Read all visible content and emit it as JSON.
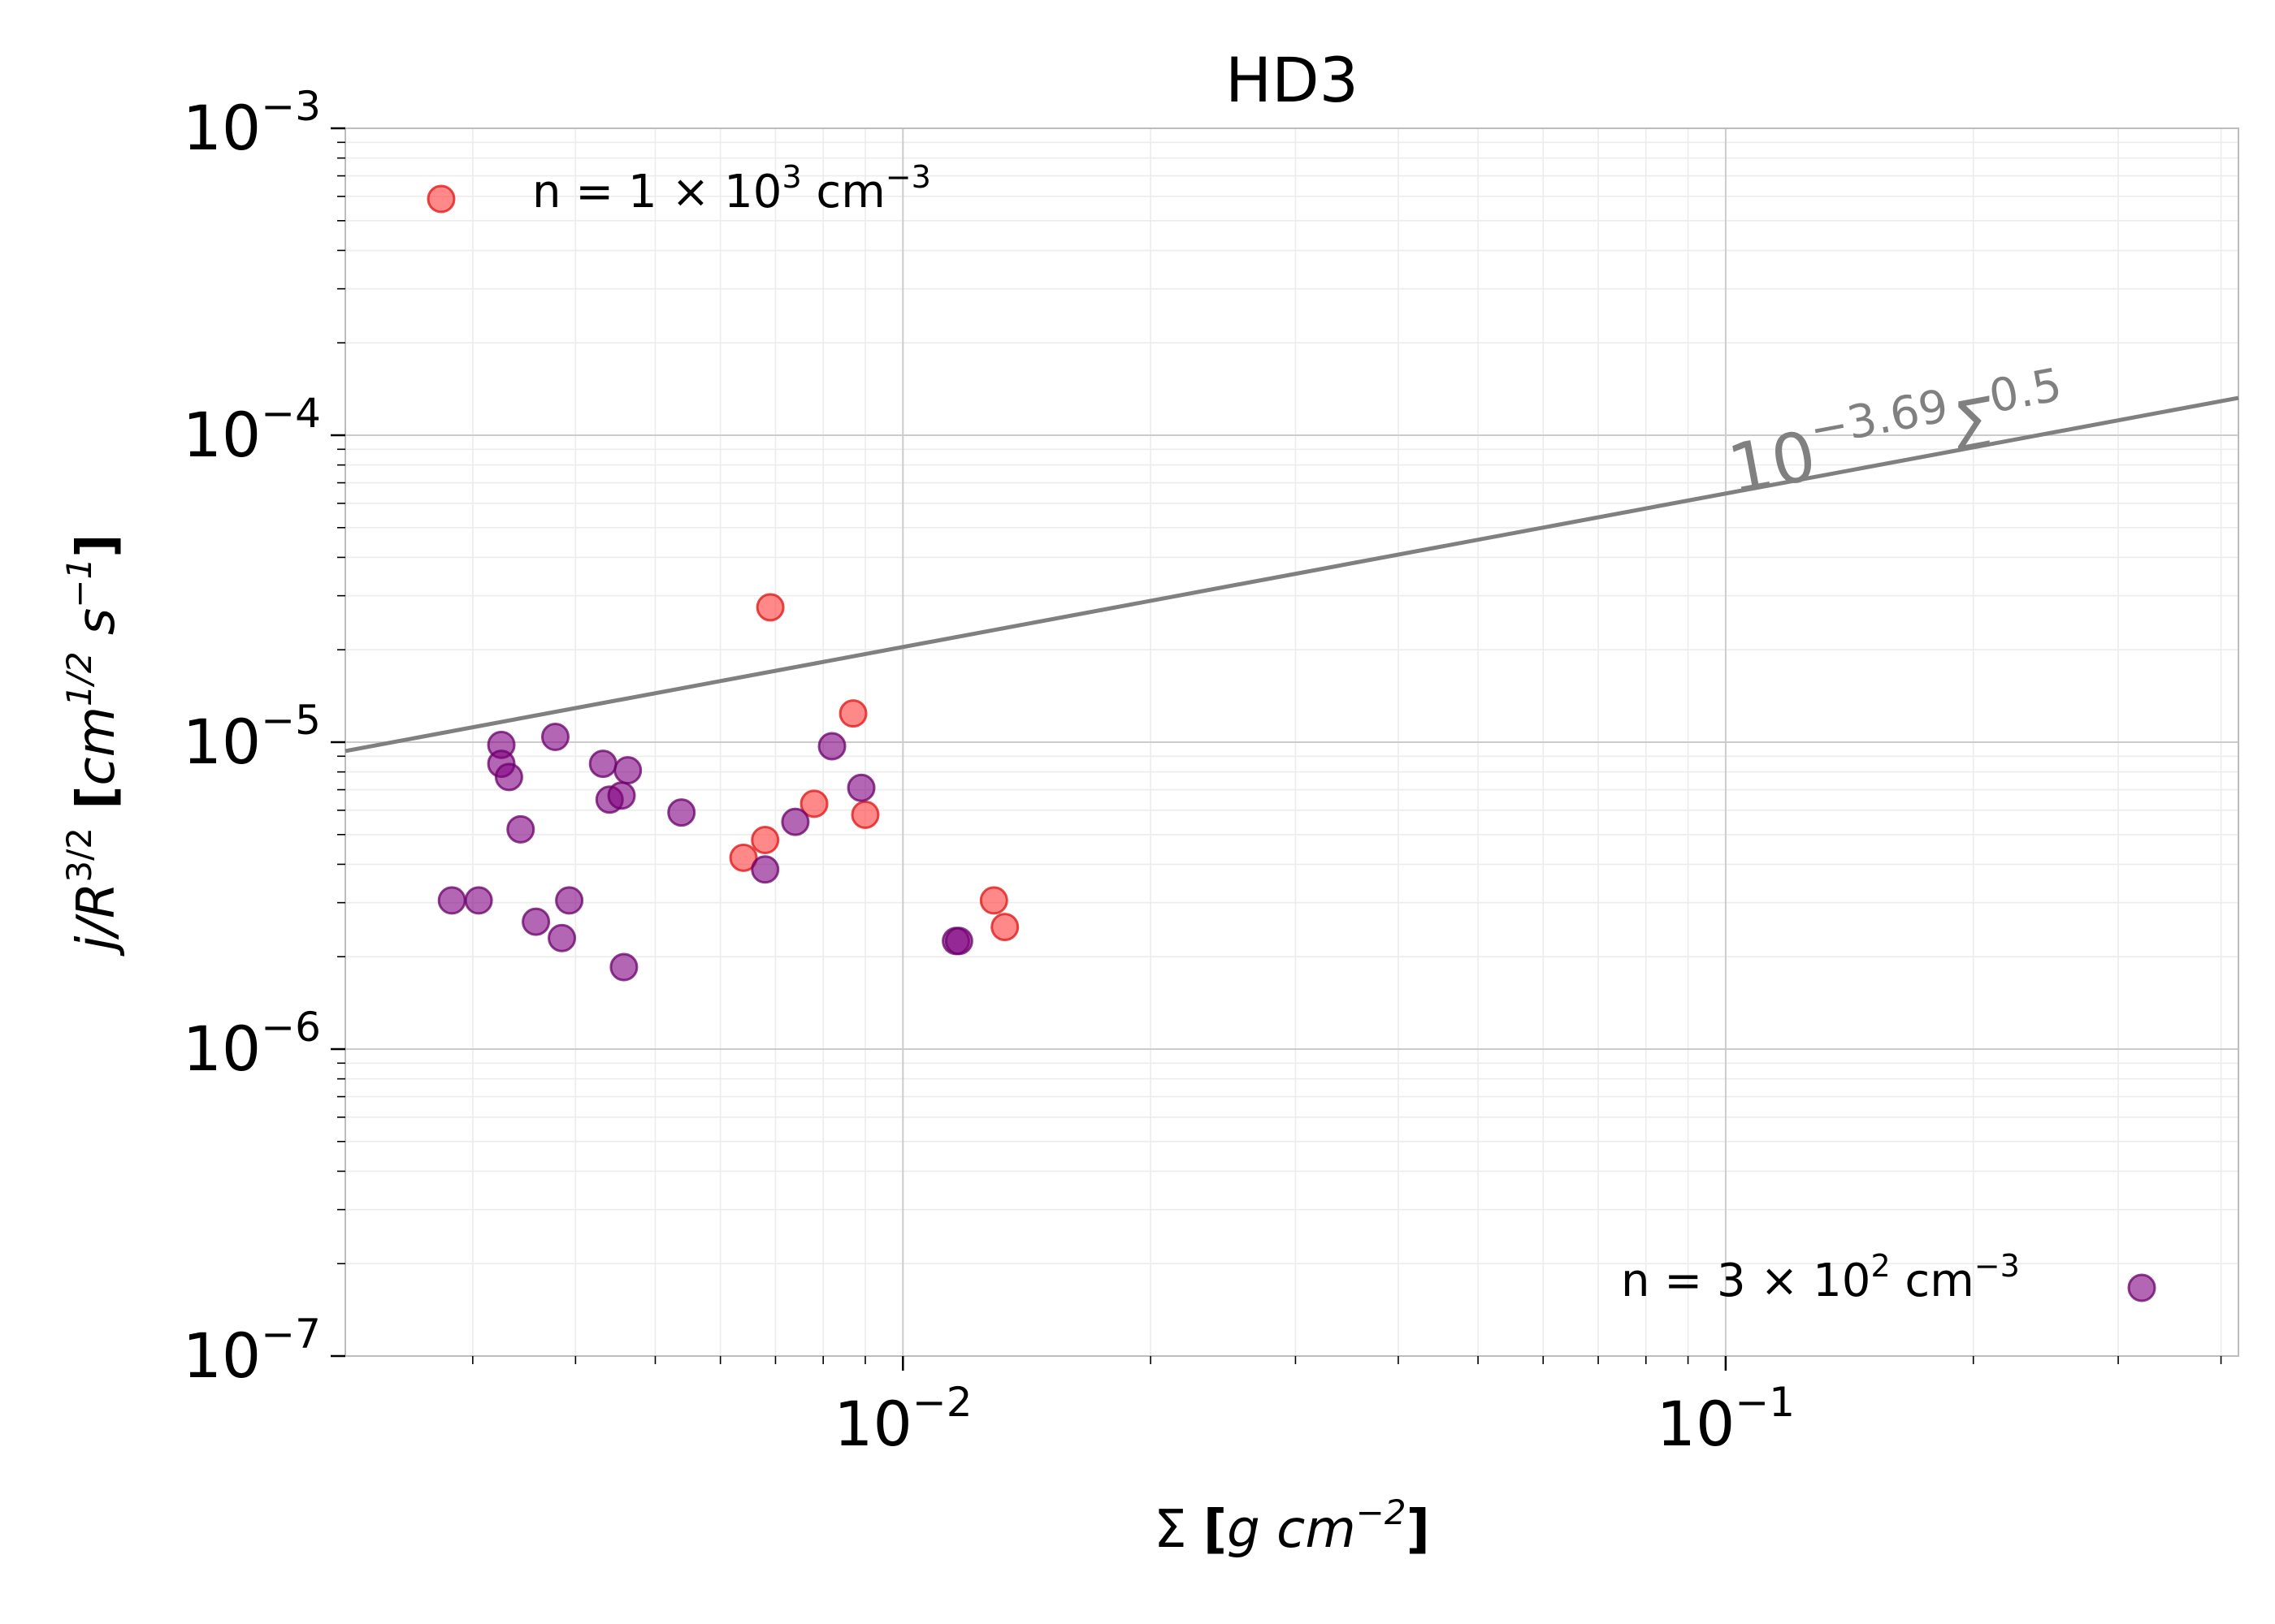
{
  "chart_data": {
    "type": "scatter",
    "title": "HD3",
    "xlabel": {
      "main": "Σ ",
      "bracket_open": "[",
      "unit": "g cm",
      "exp": "−2",
      "bracket_close": "]"
    },
    "ylabel": {
      "main": "j/R",
      "exp": "3/2",
      "bracket_open": " [",
      "unit": "cm",
      "unit_exp": "1/2",
      "unit2": " s",
      "unit2_exp": "−1",
      "bracket_close": "]"
    },
    "x_scale": "log",
    "y_scale": "log",
    "xlim": [
      0.0021,
      0.42
    ],
    "ylim": [
      1e-07,
      0.001
    ],
    "grid": true,
    "x_ticks": [
      {
        "value": 0.01,
        "base": "10",
        "exp": "−2"
      },
      {
        "value": 0.1,
        "base": "10",
        "exp": "−1"
      }
    ],
    "y_ticks": [
      {
        "value": 1e-07,
        "base": "10",
        "exp": "−7"
      },
      {
        "value": 1e-06,
        "base": "10",
        "exp": "−6"
      },
      {
        "value": 1e-05,
        "base": "10",
        "exp": "−5"
      },
      {
        "value": 0.0001,
        "base": "10",
        "exp": "−4"
      },
      {
        "value": 0.001,
        "base": "10",
        "exp": "−3"
      }
    ],
    "fit_line": {
      "intercept_log10": -3.69,
      "slope": 0.5,
      "color": "#808080",
      "label": {
        "base": "10",
        "exp1": "−3.69",
        "sym": "Σ",
        "exp2": "0.5"
      },
      "label_at": [
        0.1,
        7.5e-05
      ]
    },
    "series": [
      {
        "label": {
          "prefix": "n  = 1 × 10",
          "exp": "3",
          "unit": " cm",
          "unit_exp": "−3"
        },
        "color": "#ff3b3b",
        "edge": "#e01010",
        "legend_position": "top-left",
        "points": [
          {
            "x": 0.0069,
            "y": 2.75e-05
          },
          {
            "x": 0.0087,
            "y": 1.24e-05
          },
          {
            "x": 0.0078,
            "y": 6.3e-06
          },
          {
            "x": 0.009,
            "y": 5.8e-06
          },
          {
            "x": 0.0068,
            "y": 4.8e-06
          },
          {
            "x": 0.0064,
            "y": 4.2e-06
          },
          {
            "x": 0.0129,
            "y": 3.05e-06
          },
          {
            "x": 0.0133,
            "y": 2.5e-06
          }
        ]
      },
      {
        "label": {
          "prefix": "n  = 3 × 10",
          "exp": "2",
          "unit": " cm",
          "unit_exp": "−3"
        },
        "color": "#800080",
        "edge": "#6a006a",
        "legend_position": "bottom-right",
        "points": [
          {
            "x": 0.00325,
            "y": 9.8e-06
          },
          {
            "x": 0.00325,
            "y": 8.5e-06
          },
          {
            "x": 0.00332,
            "y": 7.7e-06
          },
          {
            "x": 0.00378,
            "y": 1.04e-05
          },
          {
            "x": 0.00343,
            "y": 5.2e-06
          },
          {
            "x": 0.00432,
            "y": 8.5e-06
          },
          {
            "x": 0.00463,
            "y": 8.1e-06
          },
          {
            "x": 0.0044,
            "y": 6.5e-06
          },
          {
            "x": 0.00455,
            "y": 6.7e-06
          },
          {
            "x": 0.00538,
            "y": 5.9e-06
          },
          {
            "x": 0.00305,
            "y": 3.05e-06
          },
          {
            "x": 0.00283,
            "y": 3.05e-06
          },
          {
            "x": 0.00358,
            "y": 2.6e-06
          },
          {
            "x": 0.00385,
            "y": 2.3e-06
          },
          {
            "x": 0.00393,
            "y": 3.05e-06
          },
          {
            "x": 0.00458,
            "y": 1.85e-06
          },
          {
            "x": 0.0082,
            "y": 9.7e-06
          },
          {
            "x": 0.0089,
            "y": 7.1e-06
          },
          {
            "x": 0.0074,
            "y": 5.5e-06
          },
          {
            "x": 0.0068,
            "y": 3.85e-06
          },
          {
            "x": 0.0116,
            "y": 2.25e-06
          },
          {
            "x": 0.0117,
            "y": 2.25e-06
          }
        ]
      }
    ]
  }
}
